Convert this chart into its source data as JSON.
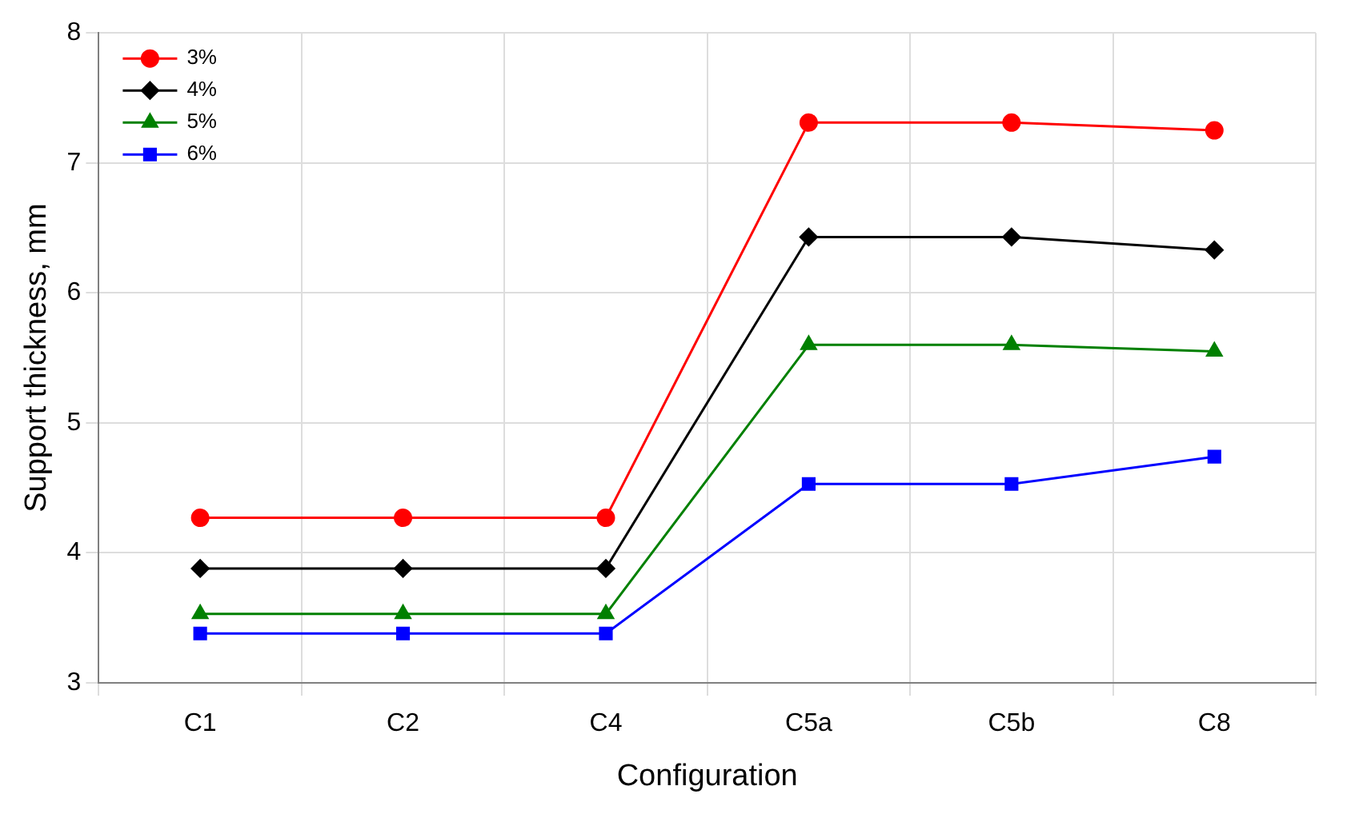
{
  "chart_data": {
    "type": "line",
    "xlabel": "Configuration",
    "ylabel": "Support thickness, mm",
    "categories": [
      "C1",
      "C2",
      "C4",
      "C5a",
      "C5b",
      "C8"
    ],
    "series": [
      {
        "name": "3%",
        "color": "#ff0000",
        "marker": "circle",
        "values": [
          4.27,
          4.27,
          4.27,
          7.31,
          7.31,
          7.25
        ]
      },
      {
        "name": "4%",
        "color": "#000000",
        "marker": "diamond",
        "values": [
          3.88,
          3.88,
          3.88,
          6.43,
          6.43,
          6.33
        ]
      },
      {
        "name": "5%",
        "color": "#008000",
        "marker": "triangle",
        "values": [
          3.53,
          3.53,
          3.53,
          5.6,
          5.6,
          5.55
        ]
      },
      {
        "name": "6%",
        "color": "#0000ff",
        "marker": "square",
        "values": [
          3.38,
          3.38,
          3.38,
          4.53,
          4.53,
          4.74
        ]
      }
    ],
    "ylim": [
      3,
      8
    ],
    "yticks": [
      3,
      4,
      5,
      6,
      7,
      8
    ],
    "grid": true,
    "legend": "top left",
    "line_style": "solid"
  }
}
